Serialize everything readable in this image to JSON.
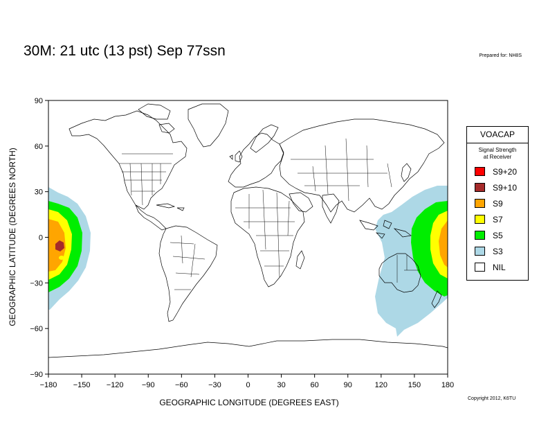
{
  "title": "30M:  21 utc (13 pst) Sep 77ssn",
  "prepared_for": "Prepared for: NH8S",
  "copyright": "Copyright 2012, K6TU",
  "x_axis": {
    "label": "GEOGRAPHIC LONGITUDE (DEGREES EAST)",
    "ticks": [
      -180,
      -150,
      -120,
      -90,
      -60,
      -30,
      0,
      30,
      60,
      90,
      120,
      150,
      180
    ],
    "range": [
      -180,
      180
    ]
  },
  "y_axis": {
    "label": "GEOGRAPHIC LATITUDE (DEGREES NORTH)",
    "ticks": [
      90,
      60,
      30,
      0,
      -30,
      -60,
      -90
    ],
    "range": [
      -90,
      90
    ]
  },
  "legend": {
    "title": "VOACAP",
    "subtitle_line1": "Signal Strength",
    "subtitle_line2": "at Receiver",
    "items": [
      {
        "label": "S9+20",
        "color": "#ff0000"
      },
      {
        "label": "S9+10",
        "color": "#a52a2a"
      },
      {
        "label": "S9",
        "color": "#ffa500"
      },
      {
        "label": "S7",
        "color": "#ffff00"
      },
      {
        "label": "S5",
        "color": "#00ee00"
      },
      {
        "label": "S3",
        "color": "#add8e6"
      },
      {
        "label": "NIL",
        "color": "#ffffff"
      }
    ]
  }
}
